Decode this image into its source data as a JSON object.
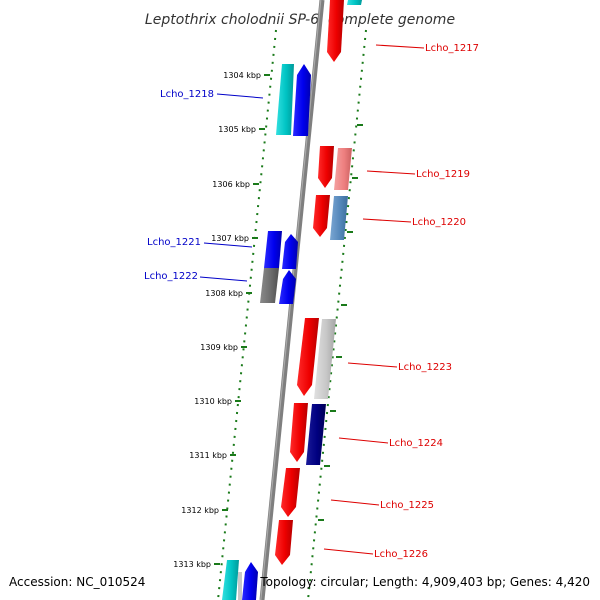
{
  "title": "Leptothrix cholodnii SP-6, complete genome",
  "footer": {
    "accession": "Accession: NC_010524",
    "topology": "Topology: circular; Length: 4,909,403 bp; Genes: 4,420"
  },
  "colors": {
    "backbone": "#7f7f7f",
    "tick": "#1a7a1a",
    "forward_label": "#0000c8",
    "reverse_label": "#dd0000"
  },
  "ticks": [
    {
      "label": "1304 kbp"
    },
    {
      "label": "1305 kbp"
    },
    {
      "label": "1306 kbp"
    },
    {
      "label": "1307 kbp"
    },
    {
      "label": "1308 kbp"
    },
    {
      "label": "1309 kbp"
    },
    {
      "label": "1310 kbp"
    },
    {
      "label": "1311 kbp"
    },
    {
      "label": "1312 kbp"
    },
    {
      "label": "1313 kbp"
    }
  ],
  "gene_labels": [
    {
      "name": "Lcho_1217",
      "strand": "reverse"
    },
    {
      "name": "Lcho_1218",
      "strand": "forward"
    },
    {
      "name": "Lcho_1219",
      "strand": "reverse"
    },
    {
      "name": "Lcho_1220",
      "strand": "reverse"
    },
    {
      "name": "Lcho_1221",
      "strand": "forward"
    },
    {
      "name": "Lcho_1222",
      "strand": "forward"
    },
    {
      "name": "Lcho_1223",
      "strand": "reverse"
    },
    {
      "name": "Lcho_1224",
      "strand": "reverse"
    },
    {
      "name": "Lcho_1225",
      "strand": "reverse"
    },
    {
      "name": "Lcho_1226",
      "strand": "reverse"
    }
  ]
}
